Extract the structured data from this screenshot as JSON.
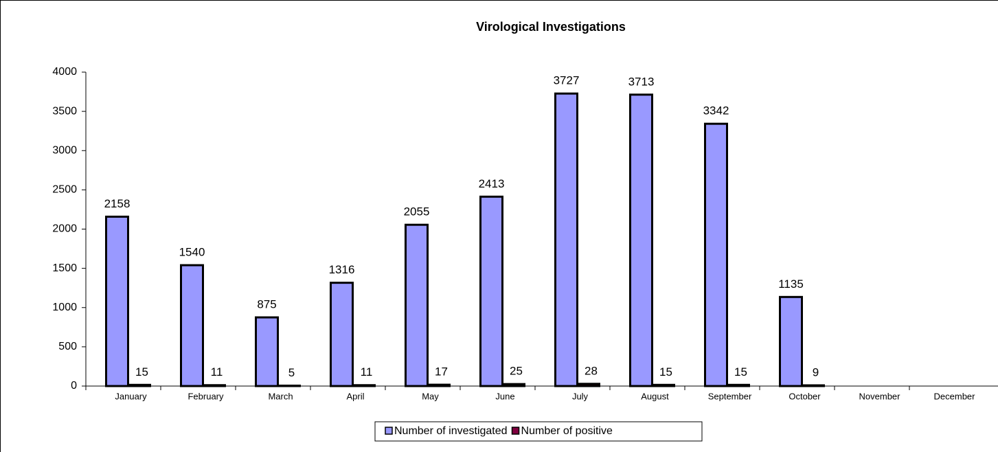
{
  "chart_data": {
    "type": "bar",
    "title": "Virological Investigations",
    "categories": [
      "January",
      "February",
      "March",
      "April",
      "May",
      "June",
      "July",
      "August",
      "September",
      "October",
      "November",
      "December"
    ],
    "series": [
      {
        "name": "Number of investigated",
        "color": "#9999ff",
        "values": [
          2158,
          1540,
          875,
          1316,
          2055,
          2413,
          3727,
          3713,
          3342,
          1135,
          null,
          null
        ]
      },
      {
        "name": "Number of positive",
        "color": "#800040",
        "values": [
          15,
          11,
          5,
          11,
          17,
          25,
          28,
          15,
          15,
          9,
          null,
          null
        ]
      }
    ],
    "ylim": [
      0,
      4000
    ],
    "yticks": [
      0,
      500,
      1000,
      1500,
      2000,
      2500,
      3000,
      3500,
      4000
    ],
    "legend": "bottom"
  }
}
